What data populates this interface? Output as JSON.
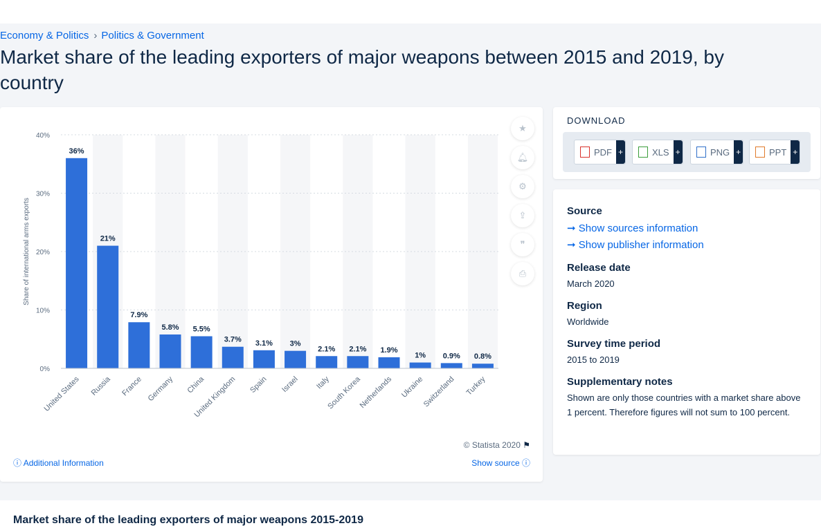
{
  "breadcrumb": {
    "item1": "Economy & Politics",
    "item2": "Politics & Government"
  },
  "page_title": "Market share of the leading exporters of major weapons between 2015 and 2019, by country",
  "chart_footer": {
    "copyright": "© Statista 2020",
    "additional_info": "Additional Information",
    "show_source": "Show source"
  },
  "download": {
    "title": "DOWNLOAD",
    "buttons": [
      {
        "label": "PDF",
        "icon": "pdf-icon",
        "color": "#d9312b"
      },
      {
        "label": "XLS",
        "icon": "xls-icon",
        "color": "#3a9d3a"
      },
      {
        "label": "PNG",
        "icon": "png-icon",
        "color": "#2f6fc9"
      },
      {
        "label": "PPT",
        "icon": "ppt-icon",
        "color": "#e07a2a"
      }
    ],
    "plus": "+"
  },
  "info": {
    "source_h": "Source",
    "sources_link": "Show sources information",
    "publisher_link": "Show publisher information",
    "release_h": "Release date",
    "release_v": "March 2020",
    "region_h": "Region",
    "region_v": "Worldwide",
    "survey_h": "Survey time period",
    "survey_v": "2015 to 2019",
    "notes_h": "Supplementary notes",
    "notes_v": "Shown are only those countries with a market share above 1 percent. Therefore figures will not sum to 100 percent."
  },
  "bottom_title": "Market share of the leading exporters of major weapons 2015-2019",
  "colors": {
    "bar": "#2e6fd9",
    "accent": "#0666e5",
    "text": "#0f2846"
  },
  "chart_data": {
    "type": "bar",
    "categories": [
      "United States",
      "Russia",
      "France",
      "Germany",
      "China",
      "United Kingdom",
      "Spain",
      "Israel",
      "Italy",
      "South Korea",
      "Netherlands",
      "Ukraine",
      "Switzerland",
      "Turkey"
    ],
    "values": [
      36,
      21,
      7.9,
      5.8,
      5.5,
      3.7,
      3.1,
      3,
      2.1,
      2.1,
      1.9,
      1,
      0.9,
      0.8
    ],
    "value_labels": [
      "36%",
      "21%",
      "7.9%",
      "5.8%",
      "5.5%",
      "3.7%",
      "3.1%",
      "3%",
      "2.1%",
      "2.1%",
      "1.9%",
      "1%",
      "0.9%",
      "0.8%"
    ],
    "ylabel": "Share of international arms exports",
    "yticks": [
      "0%",
      "10%",
      "20%",
      "30%",
      "40%"
    ],
    "ylim": [
      0,
      40
    ],
    "grid": true
  }
}
